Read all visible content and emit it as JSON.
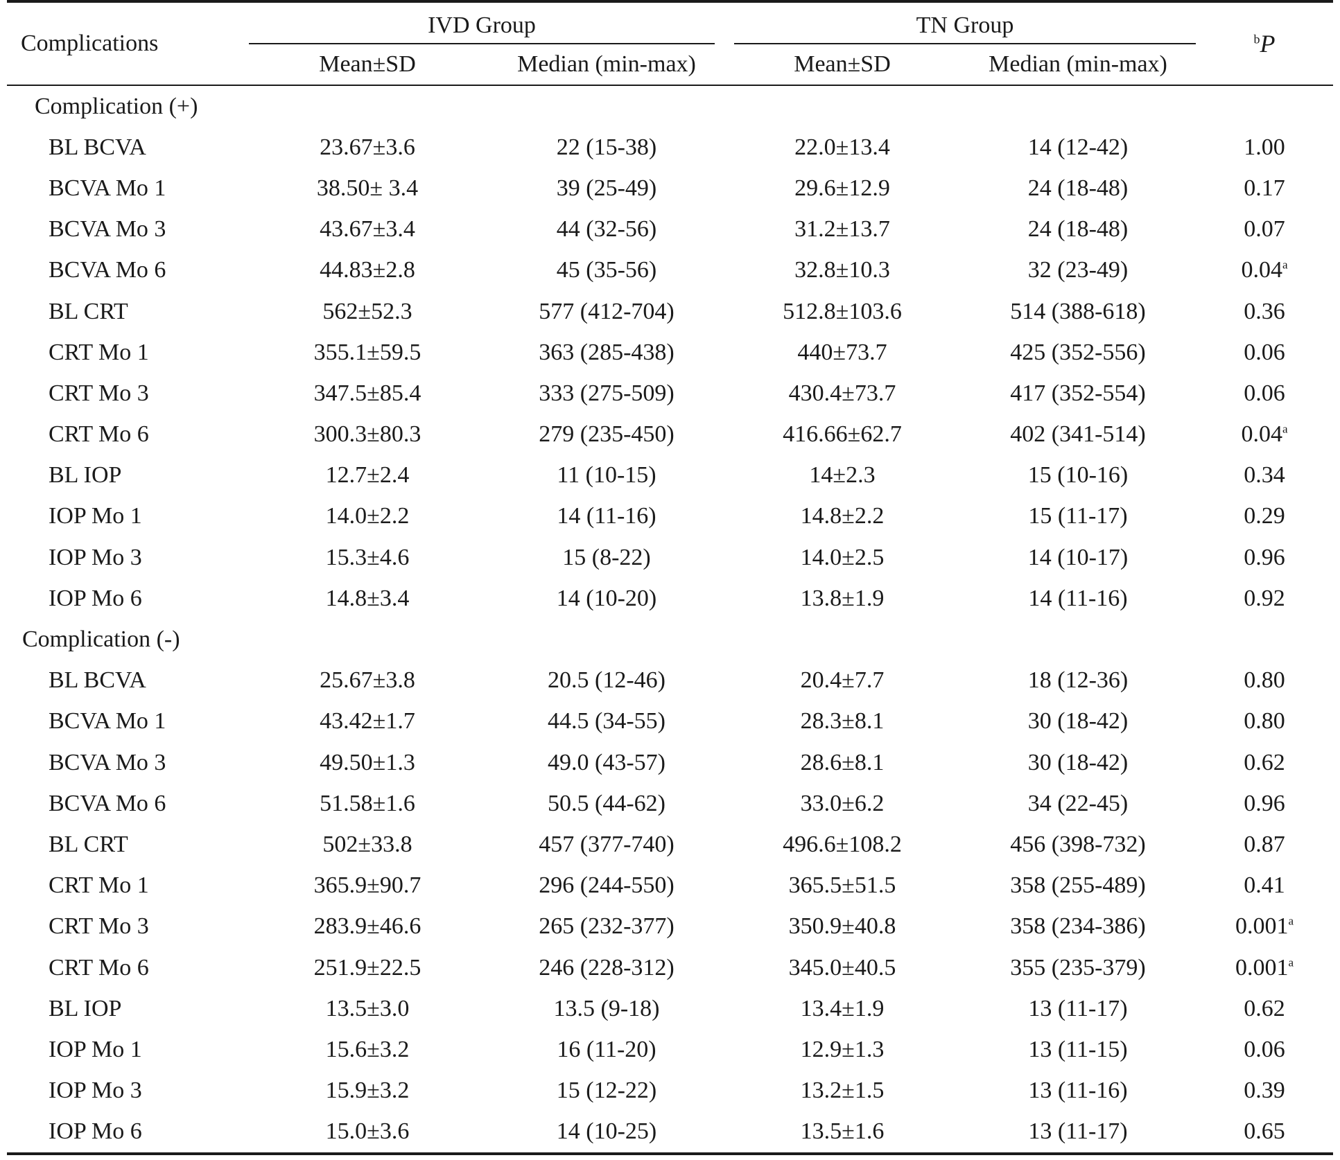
{
  "header": {
    "complications": "Complications",
    "ivd_group": "IVD Group",
    "tn_group": "TN Group",
    "p_superscript": "b",
    "p_letter": "P",
    "mean_sd": "Mean±SD",
    "median": "Median (min-max)"
  },
  "sections": [
    {
      "title": "Complication (+)",
      "rows": [
        {
          "label": "BL BCVA",
          "ivd_mean": "23.67±3.6",
          "ivd_median": "22 (15-38)",
          "tn_mean": "22.0±13.4",
          "tn_median": "14 (12-42)",
          "p": "1.00",
          "p_sup": ""
        },
        {
          "label": "BCVA Mo 1",
          "ivd_mean": "38.50± 3.4",
          "ivd_median": "39 (25-49)",
          "tn_mean": "29.6±12.9",
          "tn_median": "24 (18-48)",
          "p": "0.17",
          "p_sup": ""
        },
        {
          "label": "BCVA Mo 3",
          "ivd_mean": "43.67±3.4",
          "ivd_median": "44 (32-56)",
          "tn_mean": "31.2±13.7",
          "tn_median": "24 (18-48)",
          "p": "0.07",
          "p_sup": ""
        },
        {
          "label": "BCVA Mo 6",
          "ivd_mean": "44.83±2.8",
          "ivd_median": "45 (35-56)",
          "tn_mean": "32.8±10.3",
          "tn_median": "32 (23-49)",
          "p": "0.04",
          "p_sup": "a"
        },
        {
          "label": "BL CRT",
          "ivd_mean": "562±52.3",
          "ivd_median": "577 (412-704)",
          "tn_mean": "512.8±103.6",
          "tn_median": "514 (388-618)",
          "p": "0.36",
          "p_sup": ""
        },
        {
          "label": "CRT Mo 1",
          "ivd_mean": "355.1±59.5",
          "ivd_median": "363 (285-438)",
          "tn_mean": "440±73.7",
          "tn_median": "425 (352-556)",
          "p": "0.06",
          "p_sup": ""
        },
        {
          "label": "CRT Mo 3",
          "ivd_mean": "347.5±85.4",
          "ivd_median": "333 (275-509)",
          "tn_mean": "430.4±73.7",
          "tn_median": "417 (352-554)",
          "p": "0.06",
          "p_sup": ""
        },
        {
          "label": "CRT Mo 6",
          "ivd_mean": "300.3±80.3",
          "ivd_median": "279 (235-450)",
          "tn_mean": "416.66±62.7",
          "tn_median": "402 (341-514)",
          "p": "0.04",
          "p_sup": "a"
        },
        {
          "label": "BL IOP",
          "ivd_mean": "12.7±2.4",
          "ivd_median": "11 (10-15)",
          "tn_mean": "14±2.3",
          "tn_median": "15 (10-16)",
          "p": "0.34",
          "p_sup": ""
        },
        {
          "label": "IOP Mo 1",
          "ivd_mean": "14.0±2.2",
          "ivd_median": "14 (11-16)",
          "tn_mean": "14.8±2.2",
          "tn_median": "15 (11-17)",
          "p": "0.29",
          "p_sup": ""
        },
        {
          "label": "IOP Mo 3",
          "ivd_mean": "15.3±4.6",
          "ivd_median": "15 (8-22)",
          "tn_mean": "14.0±2.5",
          "tn_median": "14 (10-17)",
          "p": "0.96",
          "p_sup": ""
        },
        {
          "label": "IOP Mo 6",
          "ivd_mean": "14.8±3.4",
          "ivd_median": "14 (10-20)",
          "tn_mean": "13.8±1.9",
          "tn_median": "14 (11-16)",
          "p": "0.92",
          "p_sup": ""
        }
      ]
    },
    {
      "title": "Complication (-)",
      "rows": [
        {
          "label": "BL BCVA",
          "ivd_mean": "25.67±3.8",
          "ivd_median": "20.5 (12-46)",
          "tn_mean": "20.4±7.7",
          "tn_median": "18 (12-36)",
          "p": "0.80",
          "p_sup": ""
        },
        {
          "label": "BCVA Mo 1",
          "ivd_mean": "43.42±1.7",
          "ivd_median": "44.5 (34-55)",
          "tn_mean": "28.3±8.1",
          "tn_median": "30 (18-42)",
          "p": "0.80",
          "p_sup": ""
        },
        {
          "label": "BCVA Mo 3",
          "ivd_mean": "49.50±1.3",
          "ivd_median": "49.0 (43-57)",
          "tn_mean": "28.6±8.1",
          "tn_median": "30 (18-42)",
          "p": "0.62",
          "p_sup": ""
        },
        {
          "label": "BCVA Mo 6",
          "ivd_mean": "51.58±1.6",
          "ivd_median": "50.5 (44-62)",
          "tn_mean": "33.0±6.2",
          "tn_median": "34 (22-45)",
          "p": "0.96",
          "p_sup": ""
        },
        {
          "label": "BL CRT",
          "ivd_mean": "502±33.8",
          "ivd_median": "457 (377-740)",
          "tn_mean": "496.6±108.2",
          "tn_median": "456 (398-732)",
          "p": "0.87",
          "p_sup": ""
        },
        {
          "label": "CRT Mo 1",
          "ivd_mean": "365.9±90.7",
          "ivd_median": "296 (244-550)",
          "tn_mean": "365.5±51.5",
          "tn_median": "358 (255-489)",
          "p": "0.41",
          "p_sup": ""
        },
        {
          "label": "CRT Mo 3",
          "ivd_mean": "283.9±46.6",
          "ivd_median": "265 (232-377)",
          "tn_mean": "350.9±40.8",
          "tn_median": "358 (234-386)",
          "p": "0.001",
          "p_sup": "a"
        },
        {
          "label": "CRT Mo 6",
          "ivd_mean": "251.9±22.5",
          "ivd_median": "246 (228-312)",
          "tn_mean": "345.0±40.5",
          "tn_median": "355 (235-379)",
          "p": "0.001",
          "p_sup": "a"
        },
        {
          "label": "BL IOP",
          "ivd_mean": "13.5±3.0",
          "ivd_median": "13.5 (9-18)",
          "tn_mean": "13.4±1.9",
          "tn_median": "13 (11-17)",
          "p": "0.62",
          "p_sup": ""
        },
        {
          "label": "IOP Mo 1",
          "ivd_mean": "15.6±3.2",
          "ivd_median": "16 (11-20)",
          "tn_mean": "12.9±1.3",
          "tn_median": "13 (11-15)",
          "p": "0.06",
          "p_sup": ""
        },
        {
          "label": "IOP Mo 3",
          "ivd_mean": "15.9±3.2",
          "ivd_median": "15 (12-22)",
          "tn_mean": "13.2±1.5",
          "tn_median": "13 (11-16)",
          "p": "0.39",
          "p_sup": ""
        },
        {
          "label": "IOP Mo 6",
          "ivd_mean": "15.0±3.6",
          "ivd_median": "14 (10-25)",
          "tn_mean": "13.5±1.6",
          "tn_median": "13 (11-17)",
          "p": "0.65",
          "p_sup": ""
        }
      ]
    }
  ]
}
